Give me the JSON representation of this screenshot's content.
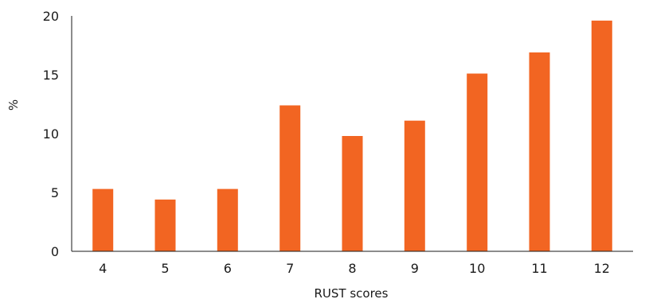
{
  "chart_data": {
    "type": "bar",
    "categories": [
      "4",
      "5",
      "6",
      "7",
      "8",
      "9",
      "10",
      "11",
      "12"
    ],
    "values": [
      5.3,
      4.4,
      5.3,
      12.4,
      9.8,
      11.1,
      15.1,
      16.9,
      19.6
    ],
    "title": "",
    "xlabel": "RUST scores",
    "ylabel": "%",
    "ylim": [
      0,
      20
    ],
    "yticks": [
      "0",
      "5",
      "10",
      "15",
      "20"
    ],
    "grid": false,
    "bar_color": "#f26522"
  }
}
